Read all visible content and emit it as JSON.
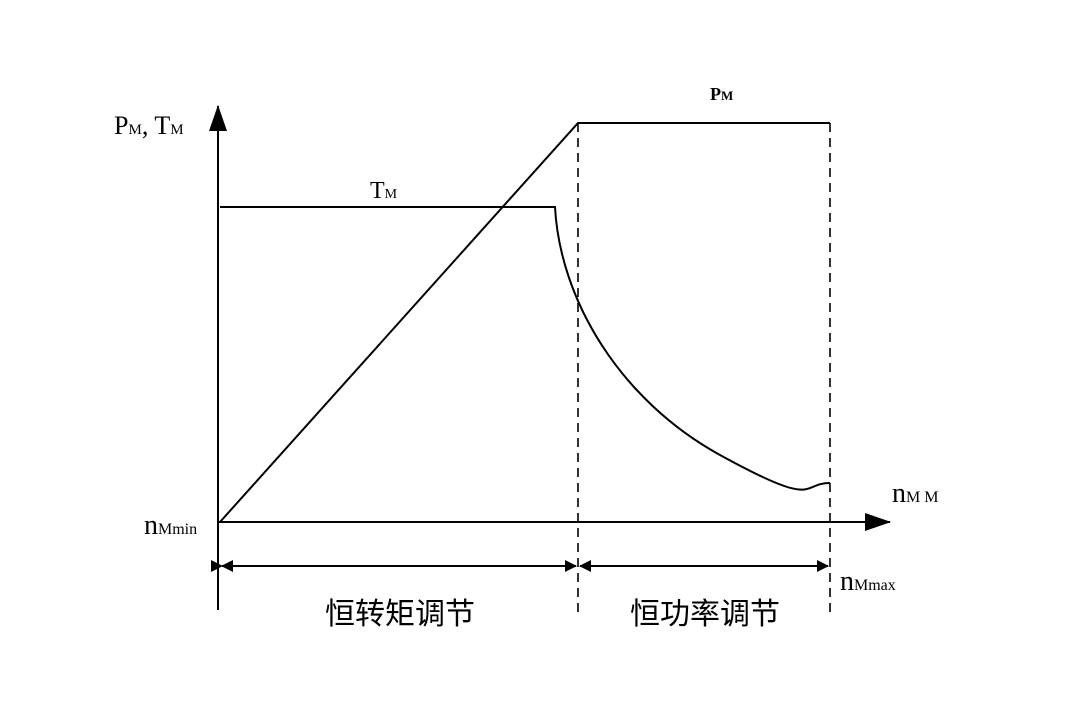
{
  "y_axis_label": {
    "p": "P",
    "p_sub": "M",
    "sep": ",",
    "t": "T",
    "t_sub": "M"
  },
  "torque_label": {
    "t": "T",
    "t_sub": "M"
  },
  "power_label": {
    "p": "P",
    "p_sub": "M"
  },
  "x_axis_label": {
    "n": "n",
    "n_sub": "M M"
  },
  "min_label": {
    "n": "n",
    "n_sub": "Mmin"
  },
  "max_label": {
    "n": "n",
    "n_sub": "Mmax"
  },
  "regions": [
    "恒转矩调节",
    "恒功率调节"
  ]
}
